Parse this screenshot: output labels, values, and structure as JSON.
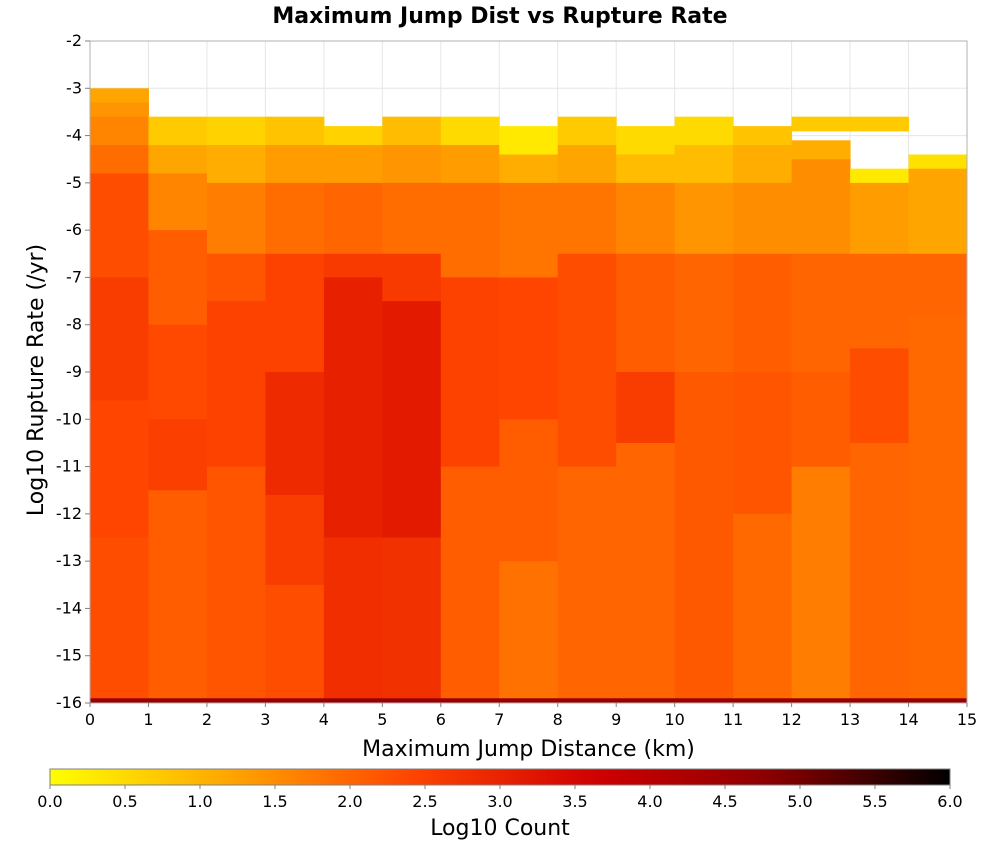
{
  "chart_data": {
    "type": "heatmap",
    "title": "Maximum Jump Dist vs Rupture Rate",
    "xlabel": "Maximum Jump Distance (km)",
    "ylabel": "Log10 Rupture Rate (/yr)",
    "xlim": [
      0,
      15
    ],
    "ylim": [
      -16,
      -2
    ],
    "x_ticks": [
      "0",
      "1",
      "2",
      "3",
      "4",
      "5",
      "6",
      "7",
      "8",
      "9",
      "10",
      "11",
      "12",
      "13",
      "14",
      "15"
    ],
    "y_ticks": [
      "-2",
      "-3",
      "-4",
      "-5",
      "-6",
      "-7",
      "-8",
      "-9",
      "-10",
      "-11",
      "-12",
      "-13",
      "-14",
      "-15",
      "-16"
    ],
    "x_bin_width": 1,
    "y_bin_height": 0.3,
    "colorbar": {
      "label": "Log10 Count",
      "min": 0,
      "max": 6,
      "ticks": [
        "0.0",
        "0.5",
        "1.0",
        "1.5",
        "2.0",
        "2.5",
        "3.0",
        "3.5",
        "4.0",
        "4.5",
        "5.0",
        "5.5",
        "6.0"
      ],
      "colors": [
        "#ffff00",
        "#ffa500",
        "#ff4500",
        "#d20000",
        "#8b0000",
        "#000000"
      ]
    },
    "value_grid_note": "columns = x bins 0-1 ... 14-15; each column lists [y_top, y_bottom, log10 count] segments",
    "columns": [
      {
        "x": 0.5,
        "cells": [
          [
            -3.0,
            -3.3,
            1.2
          ],
          [
            -3.3,
            -3.6,
            1.4
          ],
          [
            -3.6,
            -4.2,
            1.6
          ],
          [
            -4.2,
            -4.8,
            1.9
          ],
          [
            -4.8,
            -7.0,
            2.3
          ],
          [
            -7.0,
            -9.6,
            2.55
          ],
          [
            -9.6,
            -12.5,
            2.4
          ],
          [
            -12.5,
            -15.9,
            2.3
          ],
          [
            -15.9,
            -16.0,
            4.6
          ]
        ]
      },
      {
        "x": 1.5,
        "cells": [
          [
            -3.6,
            -4.2,
            0.7
          ],
          [
            -4.2,
            -4.8,
            1.2
          ],
          [
            -4.8,
            -6.0,
            1.6
          ],
          [
            -6.0,
            -8.0,
            2.1
          ],
          [
            -8.0,
            -10.0,
            2.35
          ],
          [
            -10.0,
            -11.5,
            2.5
          ],
          [
            -11.5,
            -15.9,
            2.1
          ],
          [
            -15.9,
            -16.0,
            4.6
          ]
        ]
      },
      {
        "x": 2.5,
        "cells": [
          [
            -3.6,
            -4.2,
            0.6
          ],
          [
            -4.2,
            -5.0,
            1.1
          ],
          [
            -5.0,
            -6.5,
            1.7
          ],
          [
            -6.5,
            -7.5,
            2.2
          ],
          [
            -7.5,
            -11.0,
            2.45
          ],
          [
            -11.0,
            -15.9,
            2.2
          ],
          [
            -15.9,
            -16.0,
            4.6
          ]
        ]
      },
      {
        "x": 3.5,
        "cells": [
          [
            -3.6,
            -4.2,
            0.8
          ],
          [
            -4.2,
            -5.0,
            1.3
          ],
          [
            -5.0,
            -6.5,
            1.9
          ],
          [
            -6.5,
            -9.0,
            2.45
          ],
          [
            -9.0,
            -11.6,
            2.85
          ],
          [
            -11.6,
            -13.5,
            2.55
          ],
          [
            -13.5,
            -15.9,
            2.3
          ],
          [
            -15.9,
            -16.0,
            4.6
          ]
        ]
      },
      {
        "x": 4.5,
        "cells": [
          [
            -3.8,
            -4.2,
            0.6
          ],
          [
            -4.2,
            -5.0,
            1.3
          ],
          [
            -5.0,
            -6.5,
            2.0
          ],
          [
            -6.5,
            -7.0,
            2.6
          ],
          [
            -7.0,
            -12.5,
            3.05
          ],
          [
            -12.5,
            -15.9,
            2.8
          ],
          [
            -15.9,
            -16.0,
            4.6
          ]
        ]
      },
      {
        "x": 5.5,
        "cells": [
          [
            -3.6,
            -4.2,
            0.9
          ],
          [
            -4.2,
            -5.0,
            1.4
          ],
          [
            -5.0,
            -6.5,
            1.9
          ],
          [
            -6.5,
            -7.5,
            2.6
          ],
          [
            -7.5,
            -12.5,
            3.15
          ],
          [
            -12.5,
            -15.9,
            2.75
          ],
          [
            -15.9,
            -16.0,
            4.6
          ]
        ]
      },
      {
        "x": 6.5,
        "cells": [
          [
            -3.6,
            -4.2,
            0.5
          ],
          [
            -4.2,
            -5.0,
            1.3
          ],
          [
            -5.0,
            -7.0,
            1.9
          ],
          [
            -7.0,
            -11.0,
            2.45
          ],
          [
            -11.0,
            -15.9,
            2.1
          ],
          [
            -15.9,
            -16.0,
            4.6
          ]
        ]
      },
      {
        "x": 7.5,
        "cells": [
          [
            -3.8,
            -4.4,
            0.3
          ],
          [
            -4.4,
            -5.0,
            1.1
          ],
          [
            -5.0,
            -7.0,
            1.8
          ],
          [
            -7.0,
            -10.0,
            2.4
          ],
          [
            -10.0,
            -13.0,
            2.1
          ],
          [
            -13.0,
            -15.9,
            1.85
          ],
          [
            -15.9,
            -16.0,
            4.6
          ]
        ]
      },
      {
        "x": 8.5,
        "cells": [
          [
            -3.6,
            -4.2,
            0.7
          ],
          [
            -4.2,
            -5.0,
            1.2
          ],
          [
            -5.0,
            -6.5,
            1.8
          ],
          [
            -6.5,
            -11.0,
            2.3
          ],
          [
            -11.0,
            -15.9,
            2.0
          ],
          [
            -15.9,
            -16.0,
            4.6
          ]
        ]
      },
      {
        "x": 9.5,
        "cells": [
          [
            -3.8,
            -4.4,
            0.5
          ],
          [
            -4.4,
            -5.0,
            0.9
          ],
          [
            -5.0,
            -6.5,
            1.6
          ],
          [
            -6.5,
            -9.0,
            2.1
          ],
          [
            -9.0,
            -10.5,
            2.55
          ],
          [
            -10.5,
            -15.9,
            2.0
          ],
          [
            -15.9,
            -16.0,
            4.6
          ]
        ]
      },
      {
        "x": 10.5,
        "cells": [
          [
            -3.6,
            -4.2,
            0.5
          ],
          [
            -4.2,
            -5.0,
            0.9
          ],
          [
            -5.0,
            -6.5,
            1.4
          ],
          [
            -6.5,
            -9.0,
            2.0
          ],
          [
            -9.0,
            -15.9,
            2.15
          ],
          [
            -15.9,
            -16.0,
            4.6
          ]
        ]
      },
      {
        "x": 11.5,
        "cells": [
          [
            -3.8,
            -4.2,
            0.8
          ],
          [
            -4.2,
            -5.0,
            1.1
          ],
          [
            -5.0,
            -6.5,
            1.5
          ],
          [
            -6.5,
            -9.0,
            2.1
          ],
          [
            -9.0,
            -12.0,
            2.2
          ],
          [
            -12.0,
            -15.9,
            1.95
          ],
          [
            -15.9,
            -16.0,
            4.6
          ]
        ]
      },
      {
        "x": 12.5,
        "cells": [
          [
            -3.6,
            -3.9,
            0.7
          ],
          [
            -4.1,
            -4.5,
            1.1
          ],
          [
            -4.5,
            -6.5,
            1.5
          ],
          [
            -6.5,
            -9.0,
            2.0
          ],
          [
            -9.0,
            -11.0,
            2.1
          ],
          [
            -11.0,
            -15.9,
            1.7
          ],
          [
            -15.9,
            -16.0,
            4.6
          ]
        ]
      },
      {
        "x": 13.5,
        "cells": [
          [
            -3.6,
            -3.9,
            0.7
          ],
          [
            -4.7,
            -5.0,
            0.3
          ],
          [
            -5.0,
            -6.5,
            1.3
          ],
          [
            -6.5,
            -8.5,
            2.0
          ],
          [
            -8.5,
            -10.5,
            2.3
          ],
          [
            -10.5,
            -15.9,
            2.0
          ],
          [
            -15.9,
            -16.0,
            4.6
          ]
        ]
      },
      {
        "x": 14.5,
        "cells": [
          [
            -4.4,
            -4.7,
            0.4
          ],
          [
            -4.7,
            -6.5,
            1.2
          ],
          [
            -6.5,
            -7.8,
            2.0
          ],
          [
            -7.8,
            -15.9,
            1.95
          ],
          [
            -15.9,
            -16.0,
            4.6
          ]
        ]
      }
    ]
  }
}
